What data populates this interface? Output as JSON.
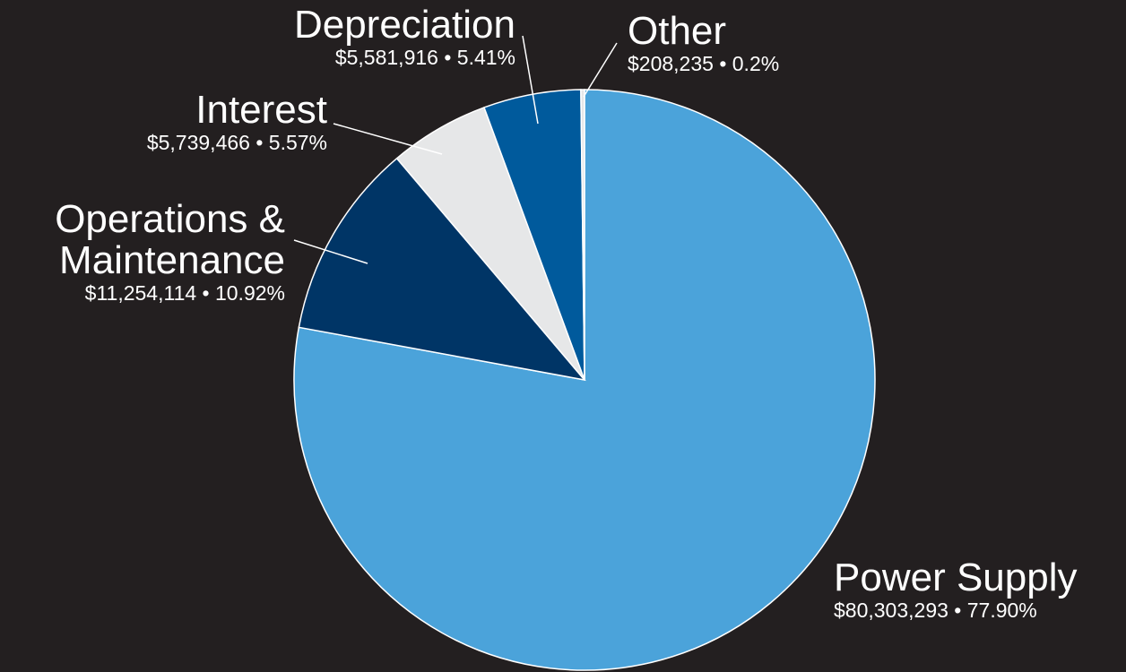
{
  "chart_data": {
    "type": "pie",
    "categories": [
      "Power Supply",
      "Operations & Maintenance",
      "Interest",
      "Depreciation",
      "Other"
    ],
    "values": [
      80303293,
      11254114,
      5739466,
      5581916,
      208235
    ],
    "value_labels": [
      "$80,303,293 • 77.90%",
      "$11,254,114 • 10.92%",
      "$5,739,466 • 5.57%",
      "$5,581,916 • 5.41%",
      "$208,235 • 0.2%"
    ],
    "colors": [
      "#4ba3da",
      "#003566",
      "#e6e7e8",
      "#005a9c",
      "#e6e7e8"
    ]
  }
}
